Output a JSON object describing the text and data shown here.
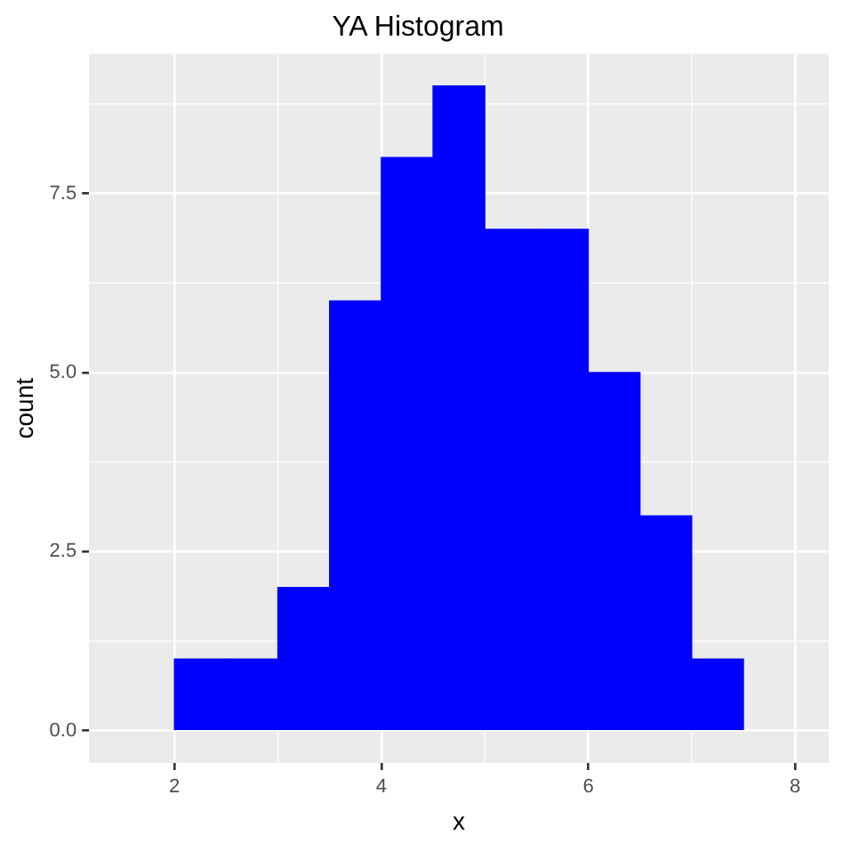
{
  "chart_data": {
    "type": "histogram",
    "title": "YA Histogram",
    "xlabel": "x",
    "ylabel": "count",
    "bins": [
      2,
      2.5,
      3,
      3.5,
      4,
      4.5,
      5,
      5.5,
      6,
      6.5,
      7,
      7.5
    ],
    "values": [
      1,
      1,
      2,
      6,
      8,
      9,
      7,
      7,
      5,
      3,
      1
    ],
    "color": "#0000ff",
    "xlim": [
      1.175,
      8.325
    ],
    "ylim": [
      -0.45,
      9.45
    ],
    "xticks": [
      2,
      4,
      6,
      8
    ],
    "yticks": [
      {
        "value": 0,
        "label": "0.0"
      },
      2.5,
      {
        "value": 5,
        "label": "5.0"
      },
      7.5
    ],
    "grid": true
  }
}
